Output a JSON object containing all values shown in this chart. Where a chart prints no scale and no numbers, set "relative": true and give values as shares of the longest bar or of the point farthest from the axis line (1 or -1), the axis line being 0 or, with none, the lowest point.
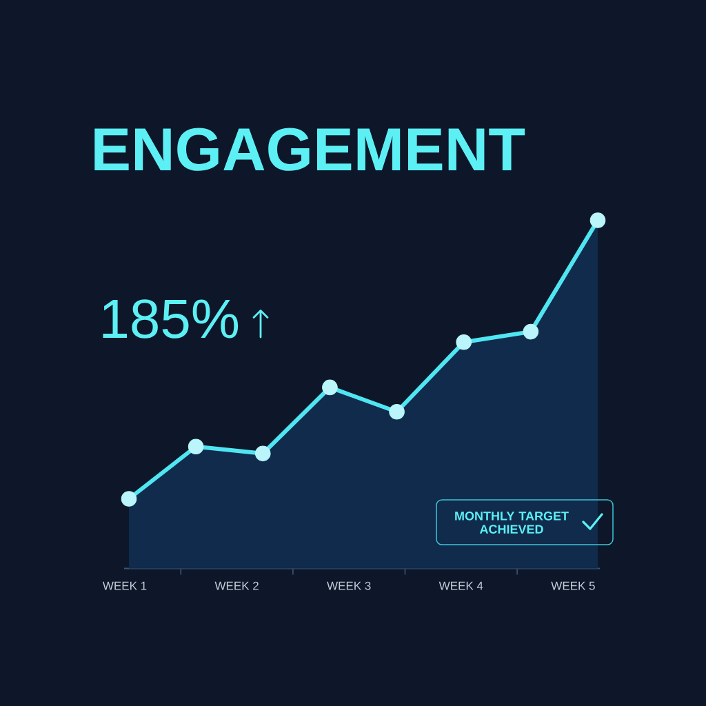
{
  "chart_data": {
    "type": "area",
    "title": "ENGAGEMENT",
    "annotations": [
      "185%",
      "MONTHLY TARGET ACHIEVED",
      "WEEK 1",
      "WEEK 2",
      "WEEK 3",
      "WEEK 4",
      "WEEK 5"
    ],
    "categories": [
      null,
      null,
      null,
      null,
      null,
      null,
      null,
      null
    ],
    "values": [
      0.2,
      0.35,
      0.33,
      0.52,
      0.45,
      0.65,
      0.68,
      1
    ],
    "color": "#4fe6f2",
    "relative": true,
    "marker": "circle",
    "line_style": "solid"
  }
}
